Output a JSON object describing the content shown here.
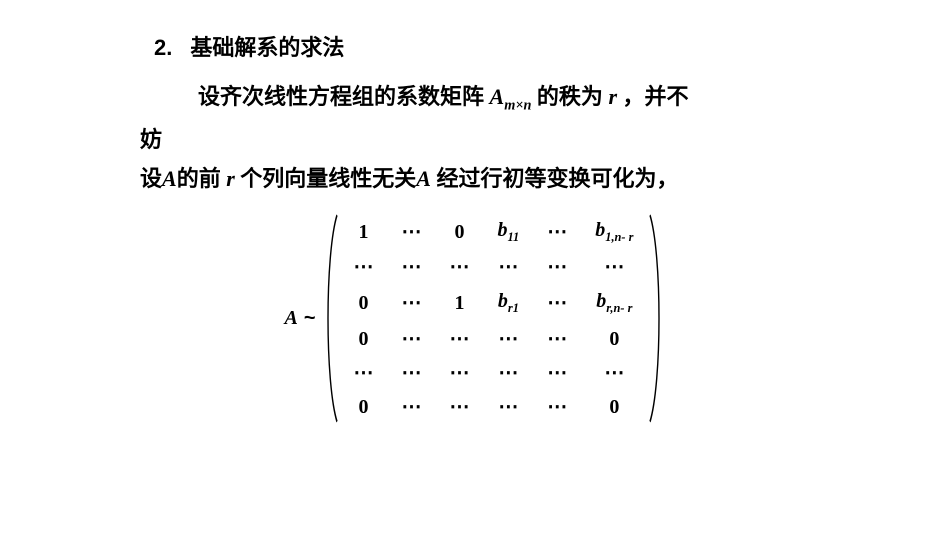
{
  "heading": {
    "number": "2.",
    "text": "基础解系的求法"
  },
  "para1": {
    "pre": "设齐次线性方程组的系数矩阵 ",
    "A": "A",
    "A_sub": "m×n",
    "mid": " 的秩为 ",
    "r": "r",
    "post": " ，并不"
  },
  "para2_a": "妨",
  "para2_b": {
    "t1": "设",
    "A": "A",
    "t2": "的前 ",
    "r": "r",
    "t3": "    个列向量线性无关",
    "A2": "A",
    "t4": " 经过行初等变换可化为，"
  },
  "matrix": {
    "lhs": "A",
    "tilde": "~",
    "rows": [
      [
        {
          "v": "1"
        },
        {
          "v": "⋯"
        },
        {
          "v": "0"
        },
        {
          "v": "b",
          "sub": "11",
          "ital": true
        },
        {
          "v": "⋯"
        },
        {
          "v": "b",
          "sub": "1,n- r",
          "ital": true
        }
      ],
      [
        {
          "v": "⋯"
        },
        {
          "v": "⋯"
        },
        {
          "v": "⋯"
        },
        {
          "v": "⋯"
        },
        {
          "v": "⋯"
        },
        {
          "v": "⋯"
        }
      ],
      [
        {
          "v": "0"
        },
        {
          "v": "⋯"
        },
        {
          "v": "1"
        },
        {
          "v": "b",
          "sub": "r1",
          "ital": true
        },
        {
          "v": "⋯"
        },
        {
          "v": "b",
          "sub": "r,n- r",
          "ital": true
        }
      ],
      [
        {
          "v": "0"
        },
        {
          "v": "⋯"
        },
        {
          "v": "⋯"
        },
        {
          "v": "⋯"
        },
        {
          "v": "⋯"
        },
        {
          "v": "0"
        }
      ],
      [
        {
          "v": "⋯"
        },
        {
          "v": "⋯"
        },
        {
          "v": "⋯"
        },
        {
          "v": "⋯"
        },
        {
          "v": "⋯"
        },
        {
          "v": "⋯"
        }
      ],
      [
        {
          "v": "0"
        },
        {
          "v": "⋯"
        },
        {
          "v": "⋯"
        },
        {
          "v": "⋯"
        },
        {
          "v": "⋯"
        },
        {
          "v": "0"
        }
      ]
    ]
  }
}
